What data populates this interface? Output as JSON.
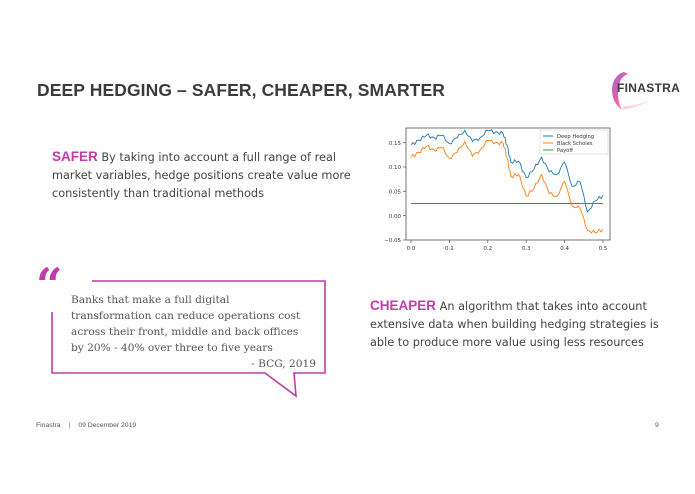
{
  "slide": {
    "title": "DEEP HEDGING – SAFER, CHEAPER,  SMARTER",
    "logo": {
      "text": "FINASTRA",
      "colors": [
        "#c33aa9",
        "#e8489a",
        "#8a5ae0"
      ]
    },
    "safer": {
      "keyword": "SAFER",
      "text": " By taking into account a full range of real market variables, hedge positions create value more consistently than traditional methods"
    },
    "cheaper": {
      "keyword": "CHEAPER",
      "text": " An algorithm that takes into account extensive data when building hedging strategies is able to produce more value using less resources"
    },
    "quote": {
      "mark": "“",
      "lines": [
        "Banks that make a full digital",
        "transformation can reduce operations cost",
        "across their front, middle and back offices",
        "by 20% - 40% over three to five years"
      ],
      "source": "- BCG, 2019"
    },
    "footer": {
      "company": "Finastra",
      "separator": "|",
      "date": "09 December 2019",
      "page_number": "9"
    },
    "accent_color": "#c33aa9"
  },
  "chart_data": {
    "type": "line",
    "title": "",
    "xlabel": "",
    "ylabel": "",
    "xlim": [
      0.0,
      0.5
    ],
    "ylim": [
      -0.05,
      0.18
    ],
    "x_ticks": [
      "0.0",
      "0.1",
      "0.2",
      "0.3",
      "0.4",
      "0.5"
    ],
    "y_ticks": [
      "−0.05",
      "0.00",
      "0.05",
      "0.10",
      "0.15"
    ],
    "legend_position": "upper right",
    "grid": false,
    "x": [
      0.0,
      0.02,
      0.04,
      0.06,
      0.08,
      0.1,
      0.12,
      0.14,
      0.16,
      0.18,
      0.2,
      0.22,
      0.24,
      0.25,
      0.26,
      0.28,
      0.3,
      0.32,
      0.34,
      0.36,
      0.38,
      0.4,
      0.42,
      0.44,
      0.46,
      0.48,
      0.5
    ],
    "series": [
      {
        "name": "Deep Hedging",
        "color": "#1f77b4",
        "values": [
          0.145,
          0.155,
          0.165,
          0.16,
          0.165,
          0.148,
          0.16,
          0.175,
          0.152,
          0.16,
          0.175,
          0.172,
          0.168,
          0.145,
          0.11,
          0.112,
          0.078,
          0.095,
          0.12,
          0.09,
          0.085,
          0.11,
          0.06,
          0.07,
          0.008,
          0.03,
          0.042
        ]
      },
      {
        "name": "Black Scholes",
        "color": "#ff7f0e",
        "values": [
          0.12,
          0.13,
          0.142,
          0.135,
          0.14,
          0.118,
          0.13,
          0.152,
          0.122,
          0.135,
          0.155,
          0.15,
          0.148,
          0.12,
          0.08,
          0.085,
          0.04,
          0.055,
          0.085,
          0.045,
          0.04,
          0.07,
          0.02,
          0.015,
          -0.03,
          -0.035,
          -0.028
        ]
      },
      {
        "name": "Payoff",
        "color": "#2ca02c",
        "values": [
          0.025,
          0.025,
          0.025,
          0.025,
          0.025,
          0.025,
          0.025,
          0.025,
          0.025,
          0.025,
          0.025,
          0.025,
          0.025,
          0.025,
          0.025,
          0.025,
          0.025,
          0.025,
          0.025,
          0.025,
          0.025,
          0.025,
          0.025,
          0.025,
          0.025,
          0.025,
          0.025
        ]
      }
    ]
  }
}
